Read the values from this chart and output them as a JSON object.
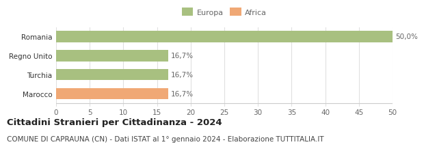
{
  "categories": [
    "Marocco",
    "Turchia",
    "Regno Unito",
    "Romania"
  ],
  "values": [
    16.7,
    16.7,
    16.7,
    50.0
  ],
  "labels": [
    "16,7%",
    "16,7%",
    "16,7%",
    "50,0%"
  ],
  "bar_colors": [
    "#f0a875",
    "#a8c080",
    "#a8c080",
    "#a8c080"
  ],
  "legend_labels": [
    "Europa",
    "Africa"
  ],
  "legend_colors": [
    "#a8c080",
    "#f0a875"
  ],
  "title": "Cittadini Stranieri per Cittadinanza - 2024",
  "subtitle": "COMUNE DI CAPRAUNA (CN) - Dati ISTAT al 1° gennaio 2024 - Elaborazione TUTTITALIA.IT",
  "xlim": [
    0,
    50
  ],
  "xticks": [
    0,
    5,
    10,
    15,
    20,
    25,
    30,
    35,
    40,
    45,
    50
  ],
  "background_color": "#ffffff",
  "grid_color": "#e0e0e0",
  "title_fontsize": 9.5,
  "subtitle_fontsize": 7.5,
  "label_fontsize": 7.5,
  "tick_fontsize": 7.5,
  "legend_fontsize": 8
}
